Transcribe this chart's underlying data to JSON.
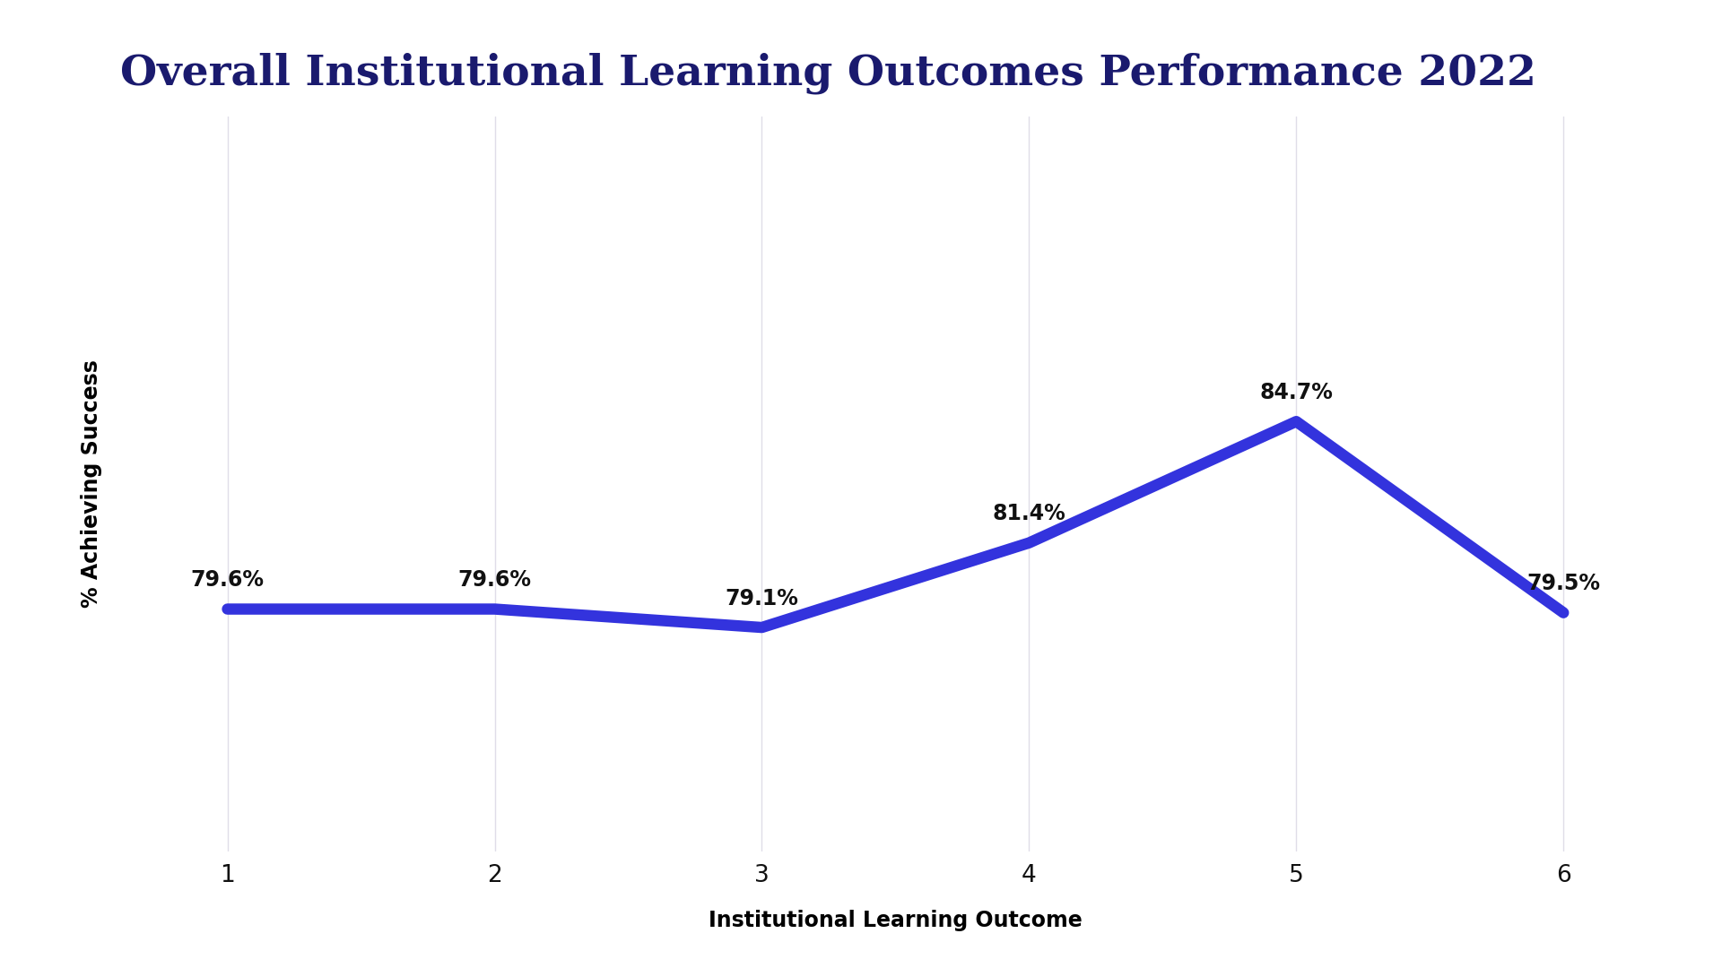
{
  "title": "Overall Institutional Learning Outcomes Performance 2022",
  "xlabel": "Institutional Learning Outcome",
  "ylabel": "% Achieving Success",
  "x": [
    1,
    2,
    3,
    4,
    5,
    6
  ],
  "y": [
    79.6,
    79.6,
    79.1,
    81.4,
    84.7,
    79.5
  ],
  "labels": [
    "79.6%",
    "79.6%",
    "79.1%",
    "81.4%",
    "84.7%",
    "79.5%"
  ],
  "line_color": "#3333dd",
  "line_width": 9,
  "title_color": "#1a1a6e",
  "xlabel_color": "#000000",
  "ylabel_color": "#000000",
  "background_color": "#ffffff",
  "ylim": [
    73,
    93
  ],
  "grid_color": "#e0dde8",
  "label_fontsize": 17,
  "title_fontsize": 34,
  "axis_label_fontsize": 17,
  "tick_fontsize": 19
}
